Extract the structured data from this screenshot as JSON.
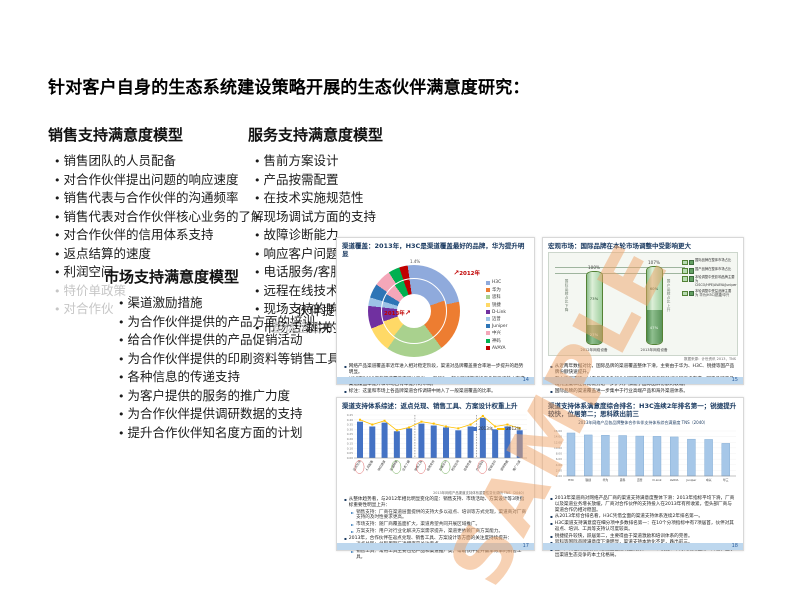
{
  "page": {
    "title": "针对客户自身的生态系统建设策略开展的生态伙伴满意度研究："
  },
  "watermark": "SAMPLE",
  "icons": {
    "arrow_up_right": "↗"
  },
  "models": {
    "sales": {
      "title": "销售支持满意度模型",
      "items": [
        "销售团队的人员配备",
        "对合作伙伴提出问题的响应速度",
        "销售代表与合作伙伴的沟通频率",
        "销售代表对合作伙伴核心业务的了解",
        "对合作伙伴的信用体系支持",
        "返点结算的速度",
        "利润空间",
        {
          "text": "特价单政策",
          "cls": "faded"
        },
        {
          "text": "对合作伙",
          "cls": "faded"
        }
      ]
    },
    "service": {
      "title": "服务支持满意度模型",
      "items": [
        "售前方案设计",
        "产品按需配置",
        "在技术实施规范性",
        "现场调试方面的支持",
        "故障诊断能力",
        "响应客户问题",
        "电话服务/客服",
        "远程在线技术",
        "现场支持的响",
        "市场活动中的"
      ],
      "fragments": {
        "f1": "伙伴提",
        "f2": "解决",
        "g1": "合作",
        "g2": "整体企业"
      }
    },
    "market": {
      "title": "市场支持满意度模型",
      "items": [
        "渠道激励措施",
        "为合作伙伴提供的产品方面的培训",
        "给合作伙伴提供的产品促销活动",
        "为合作伙伴提供的印刷资料等销售工具",
        "各种信息的传递支持",
        "为客户提供的服务的推广力度",
        "为合作伙伴提供调研数据的支持",
        "提升合作伙伴知名度方面的计划"
      ]
    }
  },
  "slides": {
    "channel": {
      "title": "渠道覆盖：2013年，H3C是渠道覆盖最好的品牌，华为提升明显",
      "top_label": "1.4%",
      "year_outer": "2012年",
      "year_inner": "2013年",
      "page": "14",
      "bullets": [
        "网络产品渠道覆盖率近年进入相对稳定阶段，渠道对品牌覆盖重合率进一步提升的趋势明显。",
        "H3C在2013年的渠道覆盖率超过了Cisco和华为，部分区域渠道机构多年工作基本完成渠道覆盖率提升和市场占有率提升的布局。",
        "标注：这里和市场上各品牌渠道合作调研中纳入了一般渠道覆盖的比率。"
      ]
    },
    "macro": {
      "title": "宏观市场：国际品牌在本轮市场调整中受影响更大",
      "legend": [
        "国际品牌在整体市场占比",
        "国产品牌在整体市场占比",
        "本轮调整中受影响品牌主要为 CISCO/HPE/AVAYA/Juniper",
        "本轮调整中受益品牌主要为 华为/H3C/锐捷/中兴"
      ],
      "left_note": "国际品牌占比下降",
      "right_note": "国产品牌占比上升",
      "source": "数据来源：计世资讯 2013，TNS",
      "page": "15",
      "bullets": [
        "从近两年数据对比，国际品牌的渠道覆盖整体下滑，主要由于华为、H3C、锐捷等国产品牌份额快速提升。",
        "在中高端市场，过去几年多数行业对国产品牌的信任和替代进程逐步完成，国产品牌产品线完整度和性价比优势进一步扩大，加速了国际品牌份额的收缩。",
        "国际品牌的渠道覆盖进一步集中于行业高端产品和海外渠道体系。"
      ]
    },
    "support": {
      "title": "渠道支持体系综述：返点兑现、销售工具、方案设计权重上升",
      "legend_2013": "2013年",
      "legend_2012": "2012年",
      "note": "2013年网络产品渠道支持体系重要性变化调研  TNS（2040）",
      "page": "17",
      "bullets": [
        "从整体趋势看，与2012年相比明显变化的是：销售支持、市场活动、方案设计等3项指标重要性明显上升：",
        {
          "text": "销售支持：厂商在渠道层面提供的支持大多以返点、培训等方式兑现，渠道商对厂商支持的及时性要求更高。",
          "cls": "sub",
          "blt": "►"
        },
        {
          "text": "市场支持：随厂商覆盖面扩大，渠道希望共同开展区域推广。",
          "cls": "sub",
          "blt": "►"
        },
        {
          "text": "方案支持：用户对行业化解决方案需求提升，渠道更依赖厂商方案能力。",
          "cls": "sub",
          "blt": "►"
        },
        "2013年，合作伙伴在返点兑现、销售工具、方案设计等方面的关注度持续提升：",
        {
          "text": "返点兑现：兑现周期与透明度是关注重点。",
          "cls": "sub",
          "blt": "►"
        },
        {
          "text": "销售工具：常用工具主要包括产品和渠道推广类，帮助伙伴提升赢单效率的销售工具。",
          "cls": "sub",
          "blt": "►"
        }
      ]
    },
    "ranking": {
      "title": "渠道支持体系满意度综合排名：H3C连续2年排名第一；锐捷提升较快，位居第二；思科跌出前三",
      "subtitle": "2013年网络产品各品牌整体合作伙伴支持体系综合满意度  TNS（2040）",
      "page": "18",
      "bullets": [
        "2013年渠道商对网络产品厂商的渠道支持满意度整体下滑：2013年指标平均下滑，厂商以及渠道业务增长放缓，厂商对合作伙伴的支持投入在2013年有所收紧，但头部厂商与渠道合作仍相对稳固。",
        "从2013年综合排名看，H3C凭借全面的渠道支持体系连续2年排名第一。",
        "H3C渠道支持满意度在细分项中多数排名第一：在10个分项指标中有7项居首，伙伴对其返点、培训、工具等支持认可度较高。",
        "锐捷提升较快，跃居第二，主要得益于渠道激励和培训体系的完善。",
        "思科等国际品牌满意度下滑明显，渠道支持本地化不足，跌出前三。",
        "国产厂商在渠道支持满意度上占据明显优势，H3C、锐捷、华为构成行业第一阵营，显示出渠道生态竞争的本土化格局。"
      ]
    }
  },
  "chart_data": [
    {
      "type": "pie",
      "title": "渠道覆盖：2013年，H3C是渠道覆盖最好的品牌，华为提升明显",
      "categories": [
        "H3C",
        "华为",
        "思科",
        "锐捷",
        "D-Link",
        "迈普",
        "Juniper",
        "中兴",
        "神码",
        "AVAYA"
      ],
      "colors": [
        "#8faadc",
        "#ed7d31",
        "#a9d18e",
        "#ffd966",
        "#7030a0",
        "#9dc3e6",
        "#2e75b6",
        "#f4a7b9",
        "#00b050",
        "#c00000"
      ],
      "series": [
        {
          "name": "2012年",
          "values": [
            24,
            18,
            20,
            9,
            8,
            3,
            5,
            6,
            4,
            3
          ]
        },
        {
          "name": "2013年",
          "values": [
            22,
            20,
            21,
            9,
            7,
            3,
            4,
            6,
            5,
            3
          ]
        }
      ],
      "legend_position": "right"
    },
    {
      "type": "bar",
      "title": "宏观市场：国际品牌在本轮市场调整中受影响更大",
      "categories": [
        "2012年网络设备",
        "2013年网络设备"
      ],
      "totals": [
        "100%",
        "107%"
      ],
      "series": [
        {
          "name": "国产品牌占比",
          "values": [
            73,
            60
          ]
        },
        {
          "name": "国际品牌占比",
          "values": [
            27,
            47
          ]
        }
      ],
      "colors": {
        "light": "#b7dcb2",
        "dark": "#63a063"
      }
    },
    {
      "type": "bar",
      "title": "渠道支持体系综述：返点兑现、销售工具、方案设计权重上升",
      "categories": [
        "返点兑现",
        "人员配备",
        "响应速度",
        "沟通频率",
        "业务了解",
        "销售工具",
        "信用支持",
        "方案设计",
        "利润空间",
        "信息传递",
        "产品培训",
        "促销活动",
        "调研数据",
        "推广力度"
      ],
      "series": [
        {
          "name": "2013年",
          "values": [
            0.38,
            0.33,
            0.37,
            0.28,
            0.31,
            0.36,
            0.34,
            0.32,
            0.29,
            0.33,
            0.42,
            0.3,
            0.33,
            0.29
          ]
        },
        {
          "name": "2012年",
          "values": [
            0.4,
            0.35,
            0.39,
            0.29,
            0.32,
            0.38,
            0.36,
            0.33,
            0.31,
            0.35,
            0.44,
            0.33,
            0.35,
            0.31
          ]
        }
      ],
      "circles": {
        "red": [
          0,
          5,
          10
        ],
        "green": [
          3,
          7
        ]
      },
      "separators": [
        5,
        10
      ],
      "ylim": [
        0,
        0.45
      ],
      "bar_color": "#4472c4",
      "line_color": "#ffc000"
    },
    {
      "type": "bar",
      "title": "渠道支持体系满意度综合排名",
      "categories": [
        "H3C",
        "锐捷",
        "华为",
        "思科",
        "迈普",
        "D-Link",
        "AVAYA",
        "Juniper",
        "中兴",
        "华三"
      ],
      "values": [
        15.3,
        14.6,
        14.5,
        14.4,
        14.2,
        14.1,
        13.9,
        13.1,
        13.0,
        11.6
      ],
      "ylim": [
        0,
        16
      ],
      "bar_color": "#a6c7e8"
    }
  ]
}
